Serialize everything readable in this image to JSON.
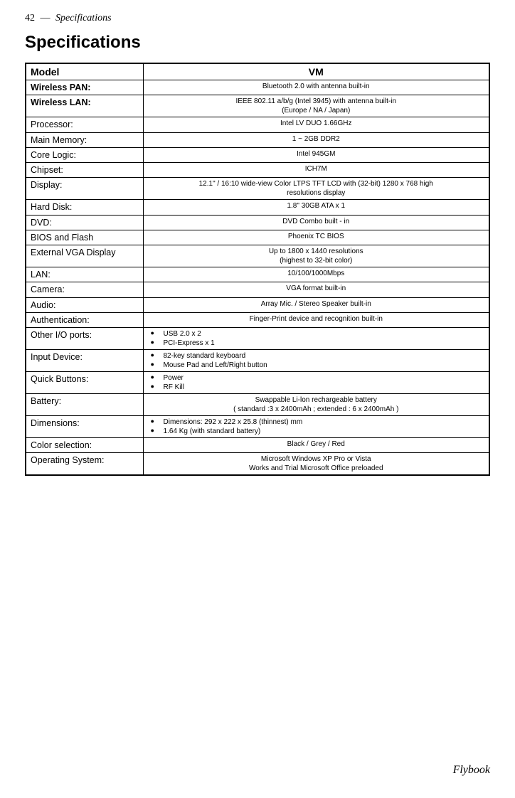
{
  "page": {
    "number": "42",
    "section": "Specifications",
    "title": "Specifications",
    "footer": "Flybook"
  },
  "header_row": {
    "label": "Model",
    "value": "VM"
  },
  "rows": [
    {
      "label": "Wireless PAN:",
      "bold": true,
      "value": "Bluetooth 2.0 with antenna built-in",
      "align": "center"
    },
    {
      "label": "Wireless LAN:",
      "bold": true,
      "value": "IEEE 802.11 a/b/g (Intel 3945) with antenna built-in<br>(Europe / NA / Japan)",
      "align": "center"
    },
    {
      "label": "Processor:",
      "value": "Intel LV DUO 1.66GHz",
      "align": "center"
    },
    {
      "label": "Main Memory:",
      "value": "1 ~ 2GB DDR2",
      "align": "center"
    },
    {
      "label": "Core Logic:",
      "value": "Intel 945GM",
      "align": "center"
    },
    {
      "label": "Chipset:",
      "value": "ICH7M",
      "align": "center"
    },
    {
      "label": "Display:",
      "value": "12.1\" / 16:10 wide-view Color LTPS TFT LCD with (32-bit) 1280 x 768 high<br>resolutions display",
      "align": "center"
    },
    {
      "label": "Hard Disk:",
      "value": "1.8\" 30GB ATA x 1",
      "align": "center"
    },
    {
      "label": "DVD:",
      "value": "DVD Combo built - in",
      "align": "center"
    },
    {
      "label": "BIOS and Flash",
      "value": "Phoenix TC BIOS",
      "align": "center"
    },
    {
      "label": "External VGA Display",
      "value": "Up to 1800 x 1440 resolutions<br>(highest to 32-bit color)",
      "align": "center"
    },
    {
      "label": "LAN:",
      "value": "10/100/1000Mbps",
      "align": "center"
    },
    {
      "label": "Camera:",
      "value": "VGA format built-in",
      "align": "center"
    },
    {
      "label": "Audio:",
      "value": "Array Mic. / Stereo Speaker built-in",
      "align": "center"
    },
    {
      "label": "Authentication:",
      "value": "Finger-Print device and recognition built-in",
      "align": "center"
    },
    {
      "label": "Other I/O ports:",
      "bullets": [
        "USB 2.0 x 2",
        "PCI-Express x 1"
      ]
    },
    {
      "label": "Input Device:",
      "bullets": [
        "82-key standard keyboard",
        "Mouse Pad and Left/Right button"
      ]
    },
    {
      "label": "Quick Buttons:",
      "bullets": [
        "Power",
        "RF Kill"
      ]
    },
    {
      "label": "Battery:",
      "value": "Swappable Li-lon rechargeable battery<br>( standard :3 x 2400mAh ; extended : 6 x 2400mAh )",
      "align": "center"
    },
    {
      "label": "Dimensions:",
      "bullets": [
        "Dimensions: 292 x 222 x 25.8 (thinnest) mm",
        "1.64 Kg (with standard battery)"
      ]
    },
    {
      "label": "Color selection:",
      "value": "Black / Grey / Red",
      "align": "center"
    },
    {
      "label": "Operating System:",
      "value": "Microsoft Windows XP Pro or Vista<br>Works and Trial Microsoft Office preloaded",
      "align": "center"
    }
  ]
}
